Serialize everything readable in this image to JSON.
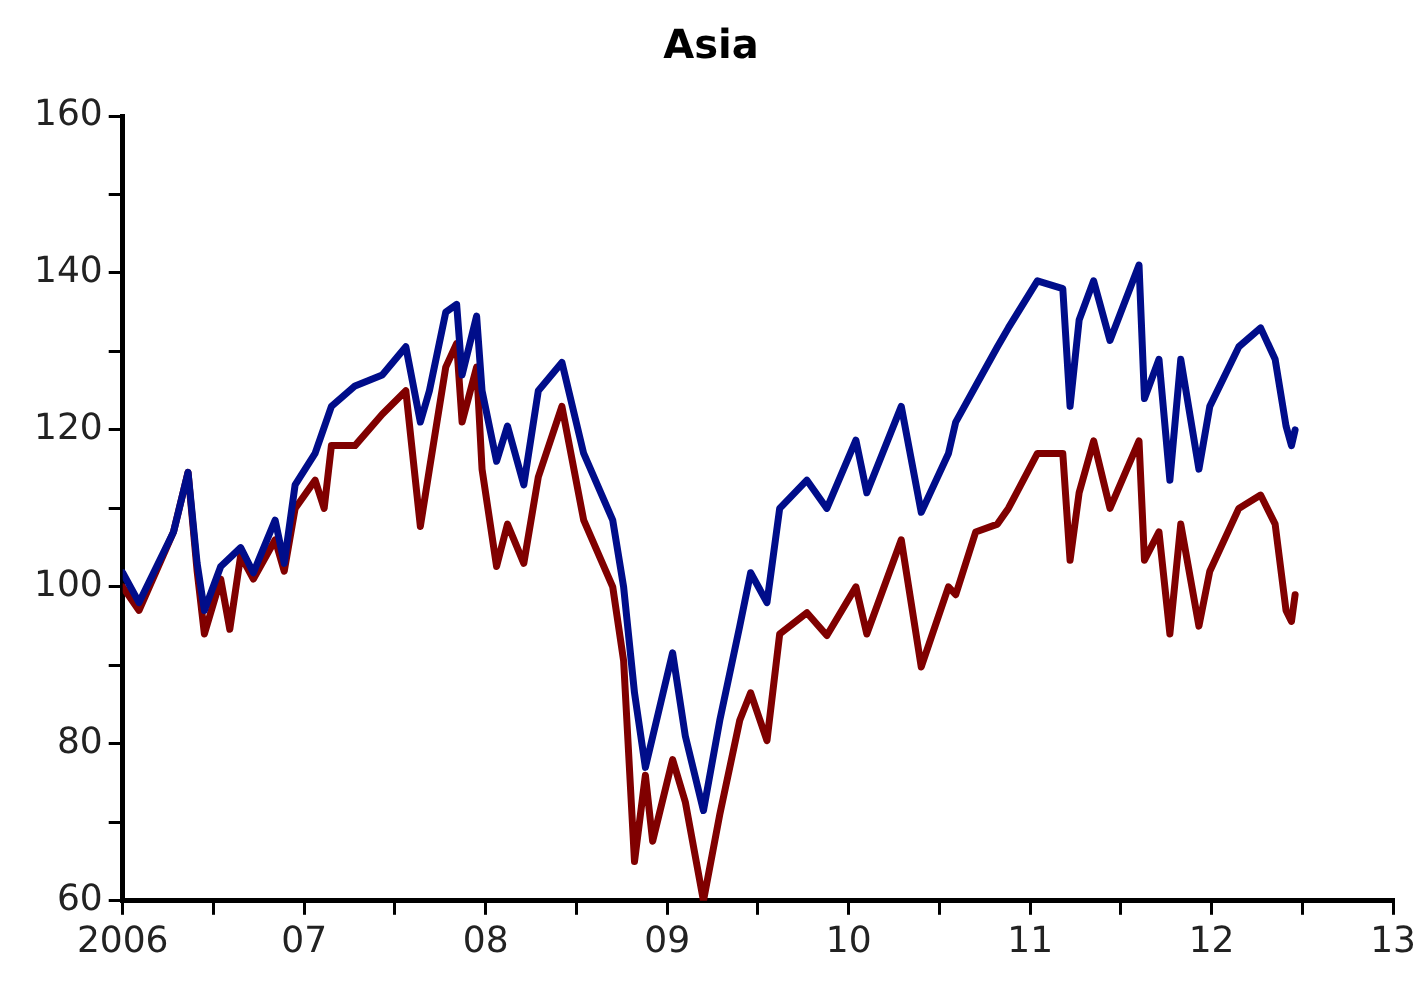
{
  "chart_data": {
    "type": "line",
    "title": "Asia",
    "marker": "none",
    "line_style": "solid",
    "grid": false,
    "legend": false,
    "xlim": [
      2006,
      2013
    ],
    "xticks": [
      {
        "value": 2006,
        "label": "2006"
      },
      {
        "value": 2006.5,
        "label": null
      },
      {
        "value": 2007,
        "label": "07"
      },
      {
        "value": 2007.5,
        "label": null
      },
      {
        "value": 2008,
        "label": "08"
      },
      {
        "value": 2008.5,
        "label": null
      },
      {
        "value": 2009,
        "label": "09"
      },
      {
        "value": 2009.5,
        "label": null
      },
      {
        "value": 2010,
        "label": "10"
      },
      {
        "value": 2010.5,
        "label": null
      },
      {
        "value": 2011,
        "label": "11"
      },
      {
        "value": 2011.5,
        "label": null
      },
      {
        "value": 2012,
        "label": "12"
      },
      {
        "value": 2012.5,
        "label": null
      },
      {
        "value": 2013,
        "label": "13"
      }
    ],
    "ylim": [
      60,
      160
    ],
    "yticks": [
      60,
      {
        "value": 70,
        "label": null
      },
      80,
      {
        "value": 90,
        "label": null
      },
      100,
      {
        "value": 110,
        "label": null
      },
      120,
      {
        "value": 130,
        "label": null
      },
      140,
      {
        "value": 150,
        "label": null
      },
      160
    ],
    "series": [
      {
        "color": "#000d8a",
        "x": [
          2006.0,
          2006.09,
          2006.28,
          2006.36,
          2006.41,
          2006.45,
          2006.54,
          2006.65,
          2006.72,
          2006.84,
          2006.89,
          2006.95,
          2007.06,
          2007.15,
          2007.28,
          2007.43,
          2007.56,
          2007.64,
          2007.69,
          2007.78,
          2007.84,
          2007.87,
          2007.95,
          2007.98,
          2008.06,
          2008.12,
          2008.21,
          2008.29,
          2008.42,
          2008.54,
          2008.7,
          2008.76,
          2008.82,
          2008.88,
          2009.03,
          2009.1,
          2009.2,
          2009.29,
          2009.4,
          2009.46,
          2009.55,
          2009.62,
          2009.77,
          2009.88,
          2010.04,
          2010.1,
          2010.29,
          2010.4,
          2010.55,
          2010.59,
          2010.7,
          2010.82,
          2010.88,
          2011.04,
          2011.18,
          2011.22,
          2011.27,
          2011.35,
          2011.44,
          2011.6,
          2011.63,
          2011.71,
          2011.77,
          2011.83,
          2011.93,
          2011.99,
          2012.15,
          2012.27,
          2012.35,
          2012.41,
          2012.44,
          2012.46
        ],
        "values": [
          101.8,
          98,
          107,
          114.6,
          103,
          97,
          102.6,
          105,
          101.8,
          108.5,
          103,
          113,
          117,
          123,
          125.6,
          127,
          130.6,
          121,
          125,
          135,
          136,
          127,
          134.5,
          125,
          116,
          120.5,
          113,
          125,
          128.6,
          117,
          108.5,
          100,
          86.5,
          77,
          91.6,
          81,
          71.5,
          83,
          95,
          101.8,
          98,
          110,
          113.6,
          110,
          118.7,
          112,
          123,
          109.5,
          117,
          121,
          125.6,
          130.6,
          133,
          139,
          138,
          123,
          134,
          139,
          131.4,
          141,
          124,
          129,
          113.6,
          129,
          115,
          123,
          130.6,
          133,
          129,
          120.5,
          118,
          120
        ]
      },
      {
        "color": "#800000",
        "x": [
          2006.0,
          2006.09,
          2006.28,
          2006.36,
          2006.41,
          2006.45,
          2006.54,
          2006.59,
          2006.65,
          2006.72,
          2006.84,
          2006.89,
          2006.95,
          2007.06,
          2007.11,
          2007.15,
          2007.28,
          2007.43,
          2007.56,
          2007.64,
          2007.69,
          2007.78,
          2007.84,
          2007.87,
          2007.95,
          2007.98,
          2008.06,
          2008.12,
          2008.21,
          2008.29,
          2008.42,
          2008.54,
          2008.7,
          2008.76,
          2008.82,
          2008.88,
          2008.92,
          2009.03,
          2009.1,
          2009.2,
          2009.29,
          2009.4,
          2009.46,
          2009.55,
          2009.62,
          2009.77,
          2009.88,
          2010.04,
          2010.1,
          2010.29,
          2010.4,
          2010.55,
          2010.59,
          2010.7,
          2010.82,
          2010.88,
          2011.04,
          2011.18,
          2011.22,
          2011.27,
          2011.35,
          2011.44,
          2011.6,
          2011.63,
          2011.71,
          2011.77,
          2011.83,
          2011.93,
          2011.99,
          2012.15,
          2012.27,
          2012.35,
          2012.41,
          2012.44,
          2012.46
        ],
        "values": [
          100,
          97,
          107,
          114.6,
          102,
          94,
          101,
          94.6,
          104,
          101,
          106,
          102,
          110,
          113.6,
          110,
          118,
          118,
          122,
          125,
          107.7,
          115,
          128,
          131,
          121,
          128,
          115,
          102.6,
          108,
          103,
          114,
          123,
          108.5,
          100,
          90.6,
          65,
          76,
          67.6,
          78,
          72.6,
          60,
          71,
          83,
          86.5,
          80.4,
          94,
          96.7,
          93.8,
          100,
          94,
          106,
          89.8,
          100,
          99,
          107,
          108,
          110,
          117,
          117,
          103.4,
          112,
          118.6,
          110,
          118.6,
          103.4,
          107,
          94,
          108,
          95,
          102,
          110,
          111.7,
          108,
          97,
          95.6,
          99
        ]
      }
    ]
  }
}
